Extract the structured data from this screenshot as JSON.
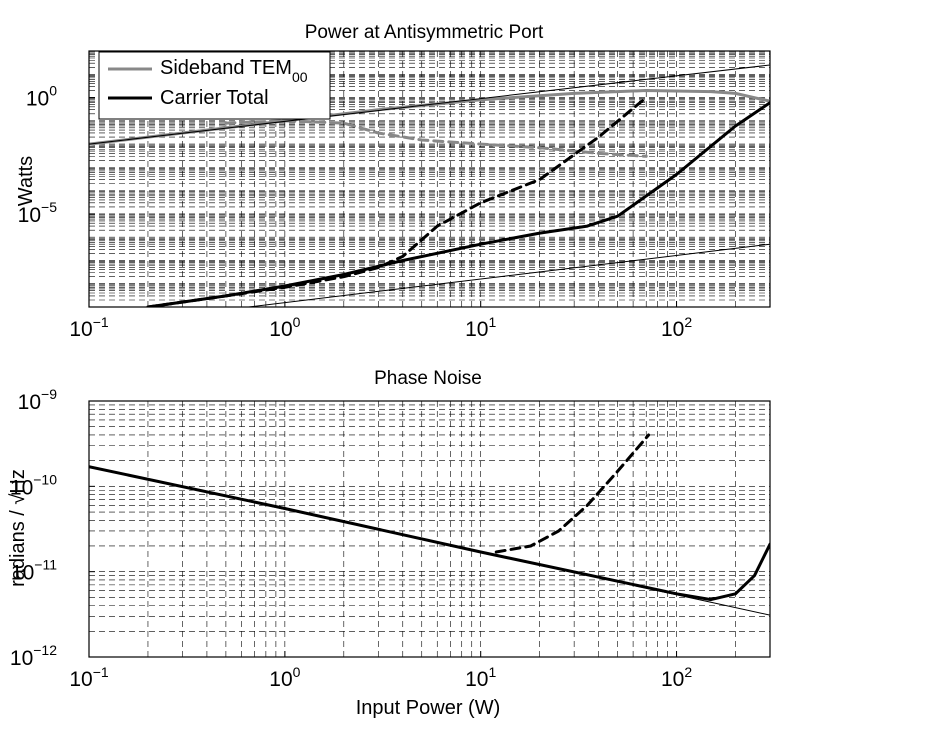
{
  "chart_data": [
    {
      "type": "line",
      "title": "Power at Antisymmetric Port",
      "xlabel": "",
      "ylabel": "Watts",
      "xscale": "log",
      "yscale": "log",
      "xlim": [
        0.1,
        300
      ],
      "ylim": [
        1e-09,
        100.0
      ],
      "grid": true,
      "x_ticks": [
        {
          "base": "10",
          "exp": "−1",
          "value": 0.1
        },
        {
          "base": "10",
          "exp": "0",
          "value": 1
        },
        {
          "base": "10",
          "exp": "1",
          "value": 10
        },
        {
          "base": "10",
          "exp": "2",
          "value": 100
        }
      ],
      "y_ticks": [
        {
          "base": "10",
          "exp": "0",
          "value": 1
        },
        {
          "base": "10",
          "exp": "−5",
          "value": 1e-05
        }
      ],
      "legend": {
        "placement": "top-left",
        "entries": [
          {
            "label": "Sideband TEM",
            "subscript": "00",
            "color": "#888888"
          },
          {
            "label": "Carrier Total",
            "color": "#000000"
          }
        ]
      },
      "series": [
        {
          "name": "Sideband TEM00",
          "color": "#888888",
          "style": "solid",
          "width": 3,
          "x": [
            0.1,
            0.3,
            1,
            3,
            10,
            30,
            70,
            150,
            200,
            300
          ],
          "y": [
            0.01,
            0.03,
            0.1,
            0.3,
            0.8,
            1.5,
            2.0,
            1.8,
            1.5,
            0.7
          ]
        },
        {
          "style": "dashed",
          "color": "#888888",
          "width": 3,
          "x": [
            0.5,
            1,
            2,
            3,
            5,
            10,
            20,
            40,
            70
          ],
          "y": [
            0.08,
            0.1,
            0.08,
            0.03,
            0.015,
            0.01,
            0.007,
            0.004,
            0.003
          ]
        },
        {
          "name": "Carrier Total",
          "color": "#000000",
          "style": "solid",
          "width": 3,
          "x": [
            0.2,
            0.5,
            1,
            2,
            4,
            10,
            20,
            35,
            50,
            100,
            200,
            300
          ],
          "y": [
            1e-09,
            3e-09,
            8e-09,
            2.5e-08,
            1e-07,
            5e-07,
            1.5e-06,
            3e-06,
            8e-06,
            0.0005,
            0.06,
            0.6
          ]
        },
        {
          "style": "dashed",
          "color": "#000000",
          "width": 3,
          "x": [
            0.2,
            0.5,
            1,
            2,
            3,
            4,
            6,
            10,
            20,
            40,
            70
          ],
          "y": [
            1e-09,
            3e-09,
            7e-09,
            2e-08,
            5e-08,
            1.5e-07,
            3e-06,
            3e-05,
            0.0003,
            0.02,
            1.0
          ]
        },
        {
          "style": "thin",
          "color": "#000000",
          "width": 1,
          "x": [
            0.1,
            300
          ],
          "y": [
            1.5e-10,
            5e-07
          ]
        },
        {
          "style": "thin",
          "color": "#000000",
          "width": 1,
          "x": [
            0.1,
            300
          ],
          "y": [
            0.01,
            25
          ]
        }
      ]
    },
    {
      "type": "line",
      "title": "Phase Noise",
      "xlabel": "Input Power (W)",
      "ylabel": "radians / √Hz",
      "xscale": "log",
      "yscale": "log",
      "xlim": [
        0.1,
        300
      ],
      "ylim": [
        1e-12,
        1e-09
      ],
      "grid": true,
      "x_ticks": [
        {
          "base": "10",
          "exp": "−1",
          "value": 0.1
        },
        {
          "base": "10",
          "exp": "0",
          "value": 1
        },
        {
          "base": "10",
          "exp": "1",
          "value": 10
        },
        {
          "base": "10",
          "exp": "2",
          "value": 100
        }
      ],
      "y_ticks": [
        {
          "base": "10",
          "exp": "−9",
          "value": 1e-09
        },
        {
          "base": "10",
          "exp": "−10",
          "value": 1e-10
        },
        {
          "base": "10",
          "exp": "−11",
          "value": 1e-11
        },
        {
          "base": "10",
          "exp": "−12",
          "value": 1e-12
        }
      ],
      "series": [
        {
          "style": "solid",
          "color": "#000000",
          "width": 3,
          "x": [
            0.1,
            1,
            10,
            100,
            150,
            200,
            250,
            300
          ],
          "y": [
            1.7e-10,
            5.5e-11,
            1.7e-11,
            5.5e-12,
            4.7e-12,
            5.5e-12,
            9e-12,
            2.1e-11
          ]
        },
        {
          "style": "dashed",
          "color": "#000000",
          "width": 3,
          "x": [
            12,
            18,
            25,
            35,
            50,
            72
          ],
          "y": [
            1.7e-11,
            2e-11,
            3e-11,
            6e-11,
            1.5e-10,
            4e-10
          ]
        },
        {
          "style": "thin",
          "color": "#000000",
          "width": 1,
          "x": [
            0.1,
            300
          ],
          "y": [
            1.7e-10,
            3.1e-12
          ]
        }
      ]
    }
  ]
}
